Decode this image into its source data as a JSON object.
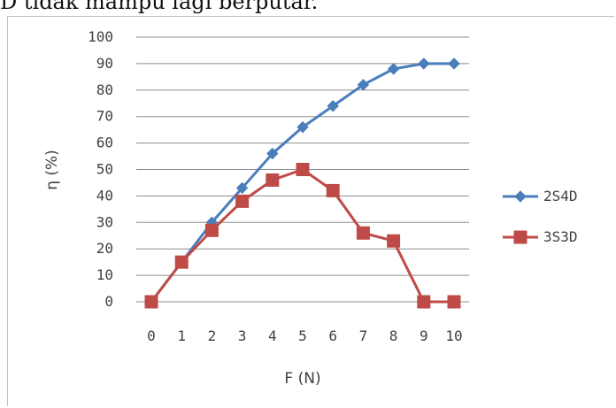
{
  "page": {
    "top_text": "D tidak mampu lagi berputar."
  },
  "chart_data": {
    "type": "line",
    "title": "",
    "xlabel": "F (N)",
    "ylabel": "η (%)",
    "x": [
      0,
      1,
      2,
      3,
      4,
      5,
      6,
      7,
      8,
      9,
      10
    ],
    "xlim": [
      0,
      10
    ],
    "ylim": [
      0,
      100
    ],
    "yticks": [
      0,
      10,
      20,
      30,
      40,
      50,
      60,
      70,
      80,
      90,
      100
    ],
    "xticks": [
      "0",
      "1",
      "2",
      "3",
      "4",
      "5",
      "6",
      "7",
      "8",
      "9",
      "10"
    ],
    "grid": "horizontal",
    "legend_position": "right",
    "series": [
      {
        "name": "2S4D",
        "color": "#4a7ebb",
        "marker": "diamond",
        "values": [
          0,
          15,
          30,
          43,
          56,
          66,
          74,
          82,
          88,
          90,
          90
        ]
      },
      {
        "name": "3S3D",
        "color": "#be4b48",
        "marker": "square",
        "values": [
          0,
          15,
          27,
          38,
          46,
          50,
          42,
          26,
          23,
          0,
          0
        ]
      }
    ]
  }
}
